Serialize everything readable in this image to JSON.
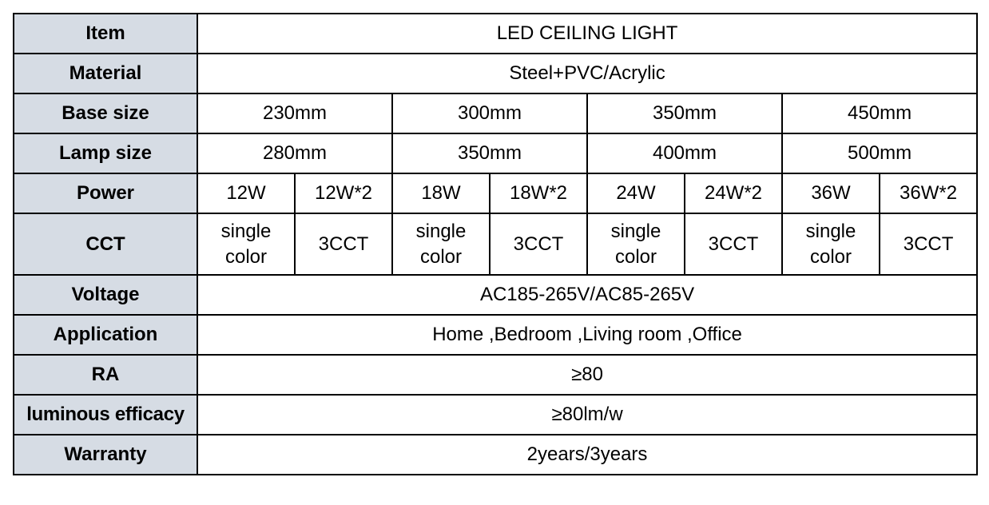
{
  "rows": {
    "item": {
      "label": "Item",
      "value": "LED CEILING LIGHT"
    },
    "material": {
      "label": "Material",
      "value": "Steel+PVC/Acrylic"
    },
    "base": {
      "label": "Base size",
      "values": [
        "230mm",
        "300mm",
        "350mm",
        "450mm"
      ]
    },
    "lamp": {
      "label": "Lamp size",
      "values": [
        "280mm",
        "350mm",
        "400mm",
        "500mm"
      ]
    },
    "power": {
      "label": "Power",
      "values": [
        "12W",
        "12W*2",
        "18W",
        "18W*2",
        "24W",
        "24W*2",
        "36W",
        "36W*2"
      ]
    },
    "cct": {
      "label": "CCT",
      "values": [
        "single color",
        "3CCT",
        "single color",
        "3CCT",
        "single color",
        "3CCT",
        "single color",
        "3CCT"
      ]
    },
    "voltage": {
      "label": "Voltage",
      "value": "AC185-265V/AC85-265V"
    },
    "application": {
      "label": "Application",
      "value": "Home ,Bedroom ,Living room ,Office"
    },
    "ra": {
      "label": "RA",
      "value": "≥80"
    },
    "efficacy": {
      "label": "luminous efficacy",
      "value": "≥80lm/w"
    },
    "warranty": {
      "label": "Warranty",
      "value": "2years/3years"
    }
  },
  "colors": {
    "header_bg": "#d6dce4",
    "border": "#000000"
  }
}
